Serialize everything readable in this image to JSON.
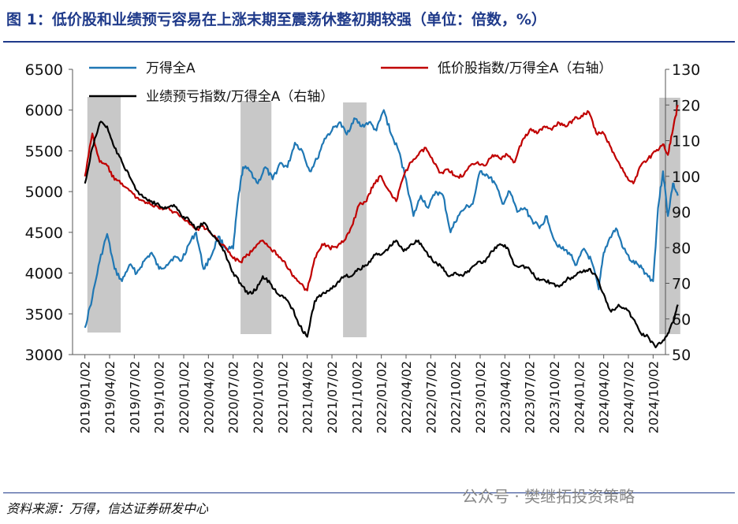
{
  "title": "图 1：低价股和业绩预亏容易在上涨末期至震荡休整初期较强（单位：倍数，%）",
  "source": "资料来源：万得，信达证券研发中心",
  "watermark": "公众号 · 樊继拓投资策略",
  "colors": {
    "wind_all_a": "#1f77b4",
    "low_price": "#c00000",
    "loss_warning": "#000000",
    "shading": "#c8c8c8",
    "title": "#1f3a8a"
  },
  "chart_data": {
    "type": "line",
    "x_tick_labels": [
      "2019/01/02",
      "2019/04/02",
      "2019/07/02",
      "2019/10/02",
      "2020/01/02",
      "2020/04/02",
      "2020/07/02",
      "2020/10/02",
      "2021/01/02",
      "2021/04/02",
      "2021/07/02",
      "2021/10/02",
      "2022/01/02",
      "2022/04/02",
      "2022/07/02",
      "2022/10/02",
      "2023/01/02",
      "2023/04/02",
      "2023/07/02",
      "2023/10/02",
      "2024/01/02",
      "2024/04/02",
      "2024/07/02",
      "2024/10/02"
    ],
    "y_left": {
      "ticks": [
        3000,
        3500,
        4000,
        4500,
        5000,
        5500,
        6000,
        6500
      ],
      "range": [
        3000,
        6500
      ]
    },
    "y_right": {
      "ticks": [
        50,
        60,
        70,
        80,
        90,
        100,
        110,
        120,
        130
      ],
      "range": [
        50,
        130
      ]
    },
    "legend": [
      {
        "label": "万得全A",
        "color": "#1f77b4"
      },
      {
        "label": "低价股指数/万得全A（右轴）",
        "color": "#c00000"
      },
      {
        "label": "业绩预亏指数/万得全A（右轴）",
        "color": "#000000"
      }
    ],
    "shaded_periods": [
      {
        "start": 0.1,
        "end": 1.45
      },
      {
        "start": 6.3,
        "end": 7.55
      },
      {
        "start": 10.45,
        "end": 11.4
      },
      {
        "start": 23.25,
        "end": 24.1
      }
    ],
    "series": [
      {
        "name": "万得全A",
        "axis": "left",
        "color": "#1f77b4",
        "x": [
          0,
          0.3,
          0.6,
          0.9,
          1.2,
          1.5,
          1.8,
          2.1,
          2.4,
          2.7,
          3,
          3.3,
          3.6,
          3.9,
          4.2,
          4.5,
          4.8,
          5.1,
          5.4,
          5.7,
          6,
          6.2,
          6.4,
          6.7,
          7,
          7.3,
          7.6,
          7.9,
          8.2,
          8.5,
          8.8,
          9.1,
          9.4,
          9.7,
          10,
          10.3,
          10.6,
          10.9,
          11.2,
          11.5,
          11.8,
          12.1,
          12.4,
          12.7,
          13,
          13.3,
          13.6,
          13.9,
          14.2,
          14.5,
          14.8,
          15.1,
          15.4,
          15.7,
          16,
          16.3,
          16.6,
          16.9,
          17.2,
          17.5,
          17.8,
          18.1,
          18.4,
          18.7,
          19,
          19.3,
          19.6,
          19.9,
          20.2,
          20.5,
          20.8,
          21,
          21.2,
          21.5,
          21.8,
          22.1,
          22.4,
          22.7,
          23,
          23.2,
          23.4,
          23.6,
          23.8,
          24
        ],
        "values": [
          3330,
          3700,
          4150,
          4480,
          4050,
          3900,
          4100,
          4000,
          4150,
          4250,
          4050,
          4100,
          4200,
          4150,
          4350,
          4500,
          4050,
          4200,
          4450,
          4300,
          4300,
          4900,
          5300,
          5250,
          5100,
          5300,
          5150,
          5350,
          5300,
          5600,
          5500,
          5250,
          5400,
          5650,
          5750,
          5850,
          5700,
          5900,
          5800,
          5850,
          5750,
          6000,
          5700,
          5500,
          5150,
          4700,
          4950,
          4800,
          5000,
          4950,
          4500,
          4700,
          4800,
          4850,
          5250,
          5200,
          5100,
          4850,
          5000,
          4750,
          4800,
          4650,
          4550,
          4700,
          4400,
          4300,
          4250,
          4100,
          4300,
          4150,
          3800,
          4250,
          4400,
          4550,
          4300,
          4150,
          4100,
          4000,
          3900,
          4800,
          5250,
          4700,
          5100,
          4950
        ]
      },
      {
        "name": "低价股指数/万得全A（右轴）",
        "axis": "right",
        "color": "#c00000",
        "x": [
          0,
          0.3,
          0.6,
          0.9,
          1.2,
          1.5,
          1.8,
          2.1,
          2.4,
          2.7,
          3,
          3.3,
          3.6,
          3.9,
          4.2,
          4.5,
          4.8,
          5.1,
          5.4,
          5.7,
          6,
          6.3,
          6.6,
          6.9,
          7.2,
          7.5,
          7.8,
          8.1,
          8.4,
          8.7,
          9,
          9.3,
          9.6,
          9.9,
          10.2,
          10.5,
          10.8,
          11.1,
          11.4,
          11.7,
          12,
          12.3,
          12.6,
          12.9,
          13.2,
          13.5,
          13.8,
          14.1,
          14.4,
          14.7,
          15,
          15.3,
          15.6,
          15.9,
          16.2,
          16.5,
          16.8,
          17.1,
          17.4,
          17.7,
          18,
          18.3,
          18.6,
          18.9,
          19.2,
          19.5,
          19.8,
          20.1,
          20.4,
          20.7,
          21,
          21.3,
          21.6,
          21.9,
          22.2,
          22.5,
          22.8,
          23.1,
          23.4,
          23.6,
          23.8,
          24
        ],
        "values": [
          100,
          112,
          104,
          103,
          99,
          98,
          96,
          94,
          93,
          92,
          91,
          91,
          90,
          89,
          87,
          85,
          86,
          84,
          82,
          80,
          77,
          76,
          78,
          80,
          82,
          80,
          78,
          76,
          72,
          70,
          68,
          77,
          81,
          80,
          80,
          82,
          86,
          92,
          93,
          98,
          100,
          96,
          93,
          100,
          104,
          106,
          108,
          104,
          101,
          102,
          100,
          100,
          103,
          104,
          103,
          106,
          105,
          106,
          104,
          110,
          113,
          112,
          114,
          113,
          115,
          114,
          116,
          117,
          118,
          112,
          112,
          108,
          104,
          100,
          98,
          103,
          105,
          107,
          109,
          106,
          113,
          120
        ]
      },
      {
        "name": "业绩预亏指数/万得全A（右轴）",
        "axis": "right",
        "color": "#000000",
        "x": [
          0,
          0.3,
          0.6,
          0.9,
          1.2,
          1.5,
          1.8,
          2.1,
          2.4,
          2.7,
          3,
          3.3,
          3.6,
          3.9,
          4.2,
          4.5,
          4.8,
          5.1,
          5.4,
          5.7,
          6,
          6.3,
          6.6,
          6.9,
          7.2,
          7.5,
          7.8,
          8.1,
          8.4,
          8.7,
          9,
          9.3,
          9.6,
          9.9,
          10.2,
          10.5,
          10.8,
          11.1,
          11.4,
          11.7,
          12,
          12.3,
          12.6,
          12.9,
          13.2,
          13.5,
          13.8,
          14.1,
          14.4,
          14.7,
          15,
          15.3,
          15.6,
          15.9,
          16.2,
          16.5,
          16.8,
          17.1,
          17.4,
          17.7,
          18,
          18.3,
          18.6,
          18.9,
          19.2,
          19.5,
          19.8,
          20.1,
          20.4,
          20.7,
          21,
          21.3,
          21.6,
          21.9,
          22.2,
          22.5,
          22.8,
          23.1,
          23.4,
          23.6,
          23.8,
          24
        ],
        "values": [
          98,
          108,
          115,
          114,
          108,
          104,
          100,
          96,
          94,
          93,
          92,
          91,
          92,
          89,
          88,
          85,
          87,
          84,
          82,
          78,
          73,
          70,
          67,
          68,
          72,
          70,
          67,
          66,
          63,
          58,
          55,
          65,
          67,
          68,
          70,
          72,
          72,
          74,
          75,
          78,
          78,
          80,
          82,
          79,
          81,
          82,
          79,
          76,
          75,
          72,
          73,
          72,
          74,
          76,
          76,
          79,
          81,
          80,
          75,
          75,
          74,
          71,
          71,
          70,
          69,
          71,
          72,
          73,
          74,
          72,
          67,
          62,
          64,
          63,
          60,
          56,
          55,
          52,
          54,
          56,
          59,
          64
        ]
      }
    ]
  }
}
